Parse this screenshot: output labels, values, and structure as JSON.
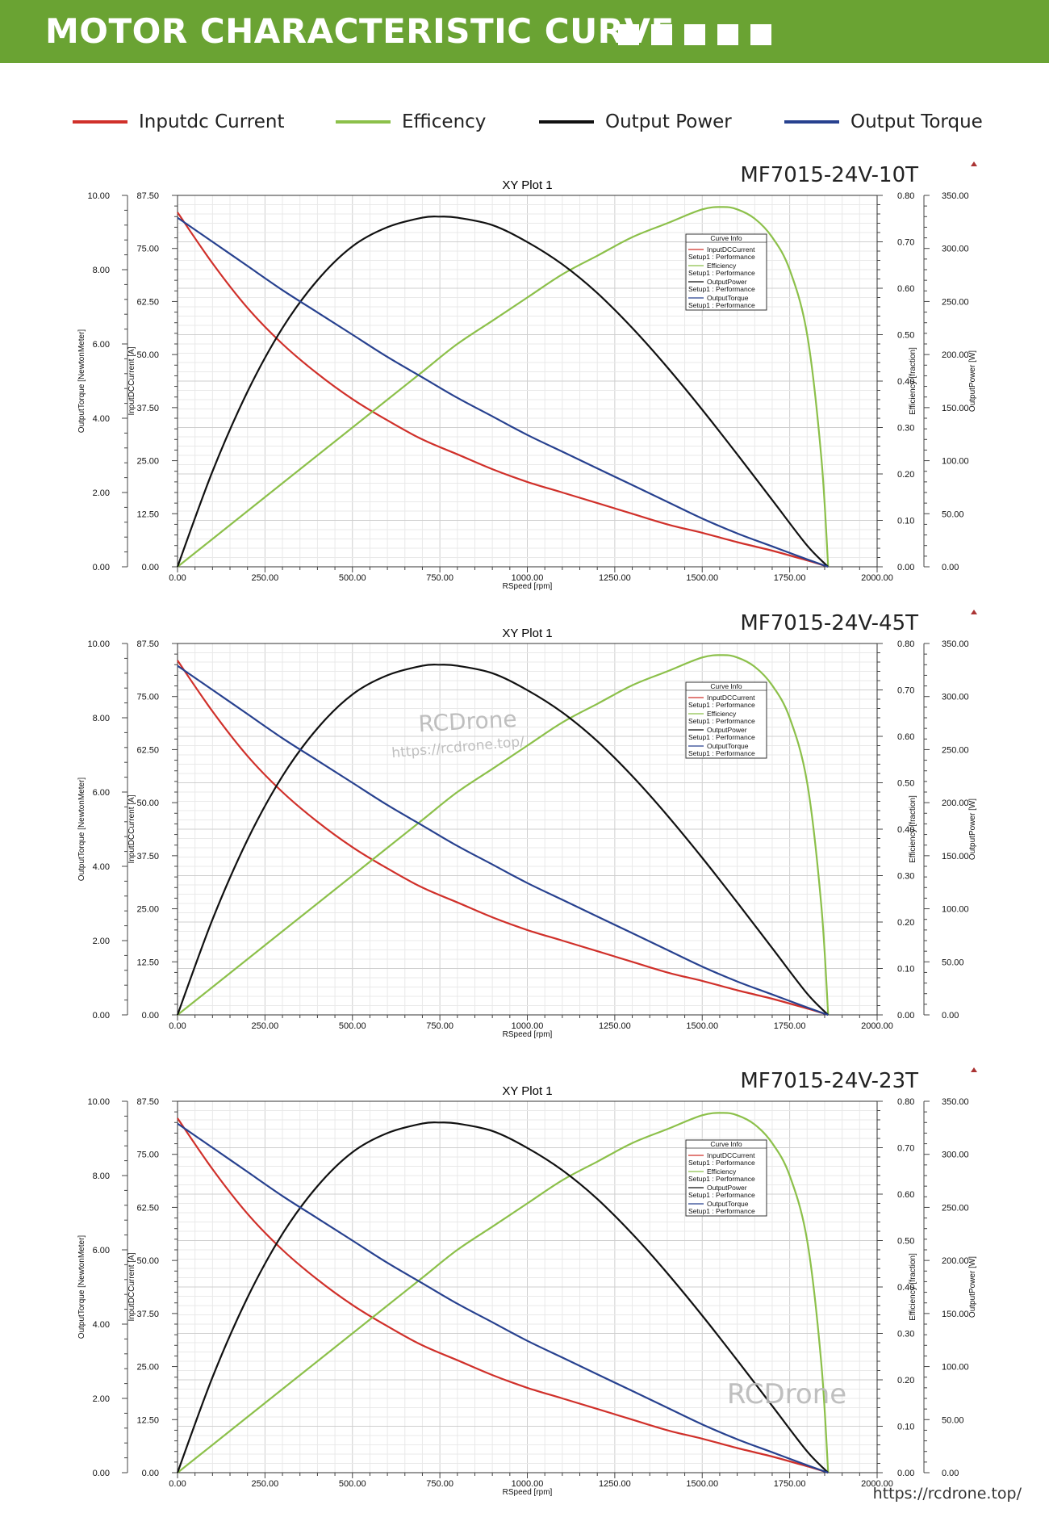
{
  "header": {
    "title": "MOTOR CHARACTERISTIC CURVE"
  },
  "legend": [
    {
      "label": "Inputdc Current",
      "color": "#d0302a"
    },
    {
      "label": "Efficency",
      "color": "#8cc04a"
    },
    {
      "label": "Output Power",
      "color": "#111111"
    },
    {
      "label": "Output Torque",
      "color": "#27418f"
    }
  ],
  "colors": {
    "banner": "#6aa333",
    "grid": "#dcdcdc"
  },
  "watermarks": [
    "RCDrone",
    "https://rcdrone.top/",
    "RCDrone"
  ],
  "footer": {
    "url": "https://rcdrone.top/"
  },
  "chart_data": [
    {
      "type": "line",
      "model": "MF7015-24V-10T",
      "title": "XY Plot 1",
      "xlabel": "RSpeed [rpm]",
      "xlim": [
        0,
        2000
      ],
      "x_ticks": [
        "0.00",
        "250.00",
        "500.00",
        "750.00",
        "1000.00",
        "1250.00",
        "1500.00",
        "1750.00",
        "2000.00"
      ],
      "axes": {
        "torque": {
          "label": "OutputTorque [NewtonMeter]",
          "lim": [
            0,
            10
          ],
          "ticks": [
            "0.00",
            "2.00",
            "4.00",
            "6.00",
            "8.00",
            "10.00"
          ]
        },
        "current": {
          "label": "InputDCCurrent [A]",
          "lim": [
            0,
            87.5
          ],
          "ticks": [
            "0.00",
            "12.50",
            "25.00",
            "37.50",
            "50.00",
            "62.50",
            "75.00",
            "87.50"
          ]
        },
        "efficiency": {
          "label": "Efficiency [fraction]",
          "lim": [
            0,
            0.8
          ],
          "ticks": [
            "0.00",
            "0.10",
            "0.20",
            "0.30",
            "0.40",
            "0.50",
            "0.60",
            "0.70",
            "0.80"
          ]
        },
        "power": {
          "label": "OutputPower [W]",
          "lim": [
            0,
            350
          ],
          "ticks": [
            "0.00",
            "50.00",
            "100.00",
            "150.00",
            "200.00",
            "250.00",
            "300.00",
            "350.00"
          ]
        }
      },
      "curve_info": {
        "title": "Curve Info",
        "entries": [
          {
            "name": "InputDCCurrent",
            "source": "Setup1 : Performance"
          },
          {
            "name": "Efficiency",
            "source": "Setup1 : Performance"
          },
          {
            "name": "OutputPower",
            "source": "Setup1 : Performance"
          },
          {
            "name": "OutputTorque",
            "source": "Setup1 : Performance"
          }
        ]
      },
      "series": [
        {
          "name": "InputDCCurrent",
          "axis": "current",
          "color": "#d0302a",
          "x": [
            0,
            100,
            200,
            300,
            400,
            500,
            600,
            700,
            800,
            900,
            1000,
            1100,
            1200,
            1300,
            1400,
            1500,
            1600,
            1700,
            1800,
            1860
          ],
          "y": [
            83.5,
            71.5,
            61.0,
            52.5,
            45.5,
            39.5,
            34.5,
            30.0,
            26.5,
            23.0,
            20.0,
            17.5,
            15.0,
            12.5,
            10.0,
            8.0,
            5.8,
            3.8,
            1.5,
            0
          ]
        },
        {
          "name": "Efficiency",
          "axis": "efficiency",
          "color": "#8cc04a",
          "x": [
            0,
            100,
            200,
            300,
            400,
            500,
            600,
            700,
            800,
            900,
            1000,
            1100,
            1200,
            1300,
            1400,
            1500,
            1560,
            1600,
            1650,
            1700,
            1750,
            1800,
            1840,
            1860
          ],
          "y": [
            0,
            0.06,
            0.12,
            0.18,
            0.24,
            0.3,
            0.36,
            0.42,
            0.48,
            0.53,
            0.58,
            0.63,
            0.67,
            0.71,
            0.74,
            0.77,
            0.775,
            0.77,
            0.75,
            0.71,
            0.64,
            0.5,
            0.24,
            0
          ]
        },
        {
          "name": "OutputPower",
          "axis": "power",
          "color": "#111111",
          "x": [
            0,
            100,
            200,
            300,
            400,
            500,
            600,
            700,
            750,
            800,
            900,
            1000,
            1100,
            1200,
            1300,
            1400,
            1500,
            1600,
            1700,
            1800,
            1860
          ],
          "y": [
            0,
            90,
            165,
            225,
            270,
            302,
            320,
            329,
            330,
            329,
            322,
            306,
            285,
            258,
            225,
            188,
            148,
            106,
            63,
            20,
            0
          ]
        },
        {
          "name": "OutputTorque",
          "axis": "torque",
          "color": "#27418f",
          "x": [
            0,
            100,
            200,
            300,
            400,
            500,
            600,
            700,
            800,
            900,
            1000,
            1100,
            1200,
            1300,
            1400,
            1500,
            1600,
            1700,
            1800,
            1860
          ],
          "y": [
            9.4,
            8.75,
            8.1,
            7.45,
            6.85,
            6.25,
            5.65,
            5.1,
            4.55,
            4.05,
            3.55,
            3.1,
            2.65,
            2.2,
            1.75,
            1.3,
            0.9,
            0.55,
            0.2,
            0
          ]
        }
      ]
    },
    {
      "type": "line",
      "model": "MF7015-24V-45T",
      "title": "XY Plot 1",
      "xlabel": "RSpeed [rpm]",
      "xlim": [
        0,
        2000
      ],
      "x_ticks": [
        "0.00",
        "250.00",
        "500.00",
        "750.00",
        "1000.00",
        "1250.00",
        "1500.00",
        "1750.00",
        "2000.00"
      ],
      "axes": {
        "torque": {
          "label": "OutputTorque [NewtonMeter]",
          "lim": [
            0,
            10
          ],
          "ticks": [
            "0.00",
            "2.00",
            "4.00",
            "6.00",
            "8.00",
            "10.00"
          ]
        },
        "current": {
          "label": "InputDCCurrent [A]",
          "lim": [
            0,
            87.5
          ],
          "ticks": [
            "0.00",
            "12.50",
            "25.00",
            "37.50",
            "50.00",
            "62.50",
            "75.00",
            "87.50"
          ]
        },
        "efficiency": {
          "label": "Efficiency [fraction]",
          "lim": [
            0,
            0.8
          ],
          "ticks": [
            "0.00",
            "0.10",
            "0.20",
            "0.30",
            "0.40",
            "0.50",
            "0.60",
            "0.70",
            "0.80"
          ]
        },
        "power": {
          "label": "OutputPower [W]",
          "lim": [
            0,
            350
          ],
          "ticks": [
            "0.00",
            "50.00",
            "100.00",
            "150.00",
            "200.00",
            "250.00",
            "300.00",
            "350.00"
          ]
        }
      },
      "curve_info": {
        "title": "Curve Info",
        "entries": [
          {
            "name": "InputDCCurrent",
            "source": "Setup1 : Performance"
          },
          {
            "name": "Efficiency",
            "source": "Setup1 : Performance"
          },
          {
            "name": "OutputPower",
            "source": "Setup1 : Performance"
          },
          {
            "name": "OutputTorque",
            "source": "Setup1 : Performance"
          }
        ]
      },
      "series": [
        {
          "name": "InputDCCurrent",
          "axis": "current",
          "color": "#d0302a",
          "x": [
            0,
            100,
            200,
            300,
            400,
            500,
            600,
            700,
            800,
            900,
            1000,
            1100,
            1200,
            1300,
            1400,
            1500,
            1600,
            1700,
            1800,
            1860
          ],
          "y": [
            83.5,
            71.5,
            61.0,
            52.5,
            45.5,
            39.5,
            34.5,
            30.0,
            26.5,
            23.0,
            20.0,
            17.5,
            15.0,
            12.5,
            10.0,
            8.0,
            5.8,
            3.8,
            1.5,
            0
          ]
        },
        {
          "name": "Efficiency",
          "axis": "efficiency",
          "color": "#8cc04a",
          "x": [
            0,
            100,
            200,
            300,
            400,
            500,
            600,
            700,
            800,
            900,
            1000,
            1100,
            1200,
            1300,
            1400,
            1500,
            1560,
            1600,
            1650,
            1700,
            1750,
            1800,
            1840,
            1860
          ],
          "y": [
            0,
            0.06,
            0.12,
            0.18,
            0.24,
            0.3,
            0.36,
            0.42,
            0.48,
            0.53,
            0.58,
            0.63,
            0.67,
            0.71,
            0.74,
            0.77,
            0.775,
            0.77,
            0.75,
            0.71,
            0.64,
            0.5,
            0.24,
            0
          ]
        },
        {
          "name": "OutputPower",
          "axis": "power",
          "color": "#111111",
          "x": [
            0,
            100,
            200,
            300,
            400,
            500,
            600,
            700,
            750,
            800,
            900,
            1000,
            1100,
            1200,
            1300,
            1400,
            1500,
            1600,
            1700,
            1800,
            1860
          ],
          "y": [
            0,
            90,
            165,
            225,
            270,
            302,
            320,
            329,
            330,
            329,
            322,
            306,
            285,
            258,
            225,
            188,
            148,
            106,
            63,
            20,
            0
          ]
        },
        {
          "name": "OutputTorque",
          "axis": "torque",
          "color": "#27418f",
          "x": [
            0,
            100,
            200,
            300,
            400,
            500,
            600,
            700,
            800,
            900,
            1000,
            1100,
            1200,
            1300,
            1400,
            1500,
            1600,
            1700,
            1800,
            1860
          ],
          "y": [
            9.4,
            8.75,
            8.1,
            7.45,
            6.85,
            6.25,
            5.65,
            5.1,
            4.55,
            4.05,
            3.55,
            3.1,
            2.65,
            2.2,
            1.75,
            1.3,
            0.9,
            0.55,
            0.2,
            0
          ]
        }
      ]
    },
    {
      "type": "line",
      "model": "MF7015-24V-23T",
      "title": "XY Plot 1",
      "xlabel": "RSpeed [rpm]",
      "xlim": [
        0,
        2000
      ],
      "x_ticks": [
        "0.00",
        "250.00",
        "500.00",
        "750.00",
        "1000.00",
        "1250.00",
        "1500.00",
        "1750.00",
        "2000.00"
      ],
      "axes": {
        "torque": {
          "label": "OutputTorque [NewtonMeter]",
          "lim": [
            0,
            10
          ],
          "ticks": [
            "0.00",
            "2.00",
            "4.00",
            "6.00",
            "8.00",
            "10.00"
          ]
        },
        "current": {
          "label": "InputDCCurrent [A]",
          "lim": [
            0,
            87.5
          ],
          "ticks": [
            "0.00",
            "12.50",
            "25.00",
            "37.50",
            "50.00",
            "62.50",
            "75.00",
            "87.50"
          ]
        },
        "efficiency": {
          "label": "Efficiency [fraction]",
          "lim": [
            0,
            0.8
          ],
          "ticks": [
            "0.00",
            "0.10",
            "0.20",
            "0.30",
            "0.40",
            "0.50",
            "0.60",
            "0.70",
            "0.80"
          ]
        },
        "power": {
          "label": "OutputPower [W]",
          "lim": [
            0,
            350
          ],
          "ticks": [
            "0.00",
            "50.00",
            "100.00",
            "150.00",
            "200.00",
            "250.00",
            "300.00",
            "350.00"
          ]
        }
      },
      "curve_info": {
        "title": "Curve Info",
        "entries": [
          {
            "name": "InputDCCurrent",
            "source": "Setup1 : Performance"
          },
          {
            "name": "Efficiency",
            "source": "Setup1 : Performance"
          },
          {
            "name": "OutputPower",
            "source": "Setup1 : Performance"
          },
          {
            "name": "OutputTorque",
            "source": "Setup1 : Performance"
          }
        ]
      },
      "series": [
        {
          "name": "InputDCCurrent",
          "axis": "current",
          "color": "#d0302a",
          "x": [
            0,
            100,
            200,
            300,
            400,
            500,
            600,
            700,
            800,
            900,
            1000,
            1100,
            1200,
            1300,
            1400,
            1500,
            1600,
            1700,
            1800,
            1860
          ],
          "y": [
            83.5,
            71.5,
            61.0,
            52.5,
            45.5,
            39.5,
            34.5,
            30.0,
            26.5,
            23.0,
            20.0,
            17.5,
            15.0,
            12.5,
            10.0,
            8.0,
            5.8,
            3.8,
            1.5,
            0
          ]
        },
        {
          "name": "Efficiency",
          "axis": "efficiency",
          "color": "#8cc04a",
          "x": [
            0,
            100,
            200,
            300,
            400,
            500,
            600,
            700,
            800,
            900,
            1000,
            1100,
            1200,
            1300,
            1400,
            1500,
            1560,
            1600,
            1650,
            1700,
            1750,
            1800,
            1840,
            1860
          ],
          "y": [
            0,
            0.06,
            0.12,
            0.18,
            0.24,
            0.3,
            0.36,
            0.42,
            0.48,
            0.53,
            0.58,
            0.63,
            0.67,
            0.71,
            0.74,
            0.77,
            0.775,
            0.77,
            0.75,
            0.71,
            0.64,
            0.5,
            0.24,
            0
          ]
        },
        {
          "name": "OutputPower",
          "axis": "power",
          "color": "#111111",
          "x": [
            0,
            100,
            200,
            300,
            400,
            500,
            600,
            700,
            750,
            800,
            900,
            1000,
            1100,
            1200,
            1300,
            1400,
            1500,
            1600,
            1700,
            1800,
            1860
          ],
          "y": [
            0,
            90,
            165,
            225,
            270,
            302,
            320,
            329,
            330,
            329,
            322,
            306,
            285,
            258,
            225,
            188,
            148,
            106,
            63,
            20,
            0
          ]
        },
        {
          "name": "OutputTorque",
          "axis": "torque",
          "color": "#27418f",
          "x": [
            0,
            100,
            200,
            300,
            400,
            500,
            600,
            700,
            800,
            900,
            1000,
            1100,
            1200,
            1300,
            1400,
            1500,
            1600,
            1700,
            1800,
            1860
          ],
          "y": [
            9.4,
            8.75,
            8.1,
            7.45,
            6.85,
            6.25,
            5.65,
            5.1,
            4.55,
            4.05,
            3.55,
            3.1,
            2.65,
            2.2,
            1.75,
            1.3,
            0.9,
            0.55,
            0.2,
            0
          ]
        }
      ]
    }
  ]
}
